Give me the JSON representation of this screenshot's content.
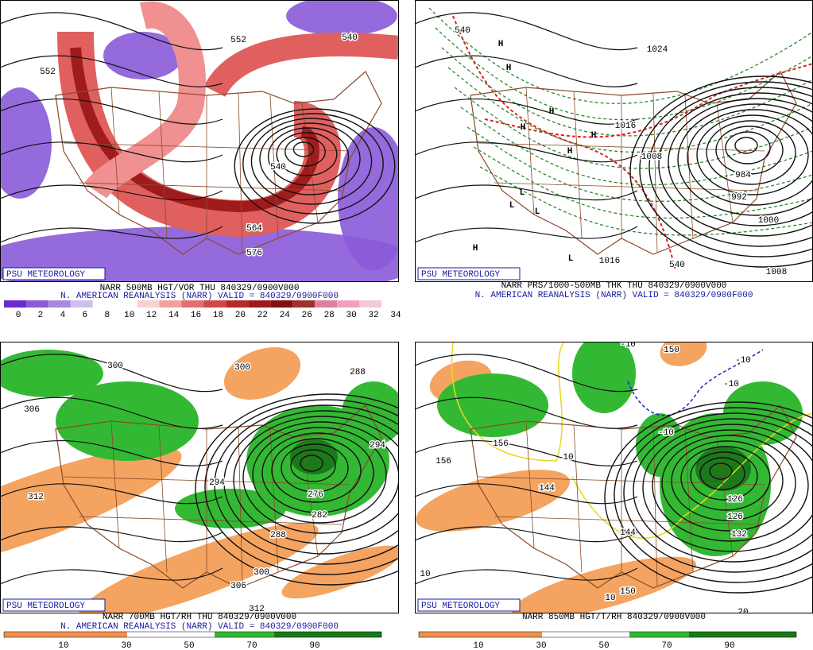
{
  "panels": [
    {
      "badge": "PSU METEOROLOGY",
      "caption": [
        "NARR 500MB HGT/VOR THU 840329/0900V000",
        "N. AMERICAN REANALYSIS (NARR) VALID = 840329/0900F000"
      ],
      "colorbar": [
        0,
        2,
        4,
        6,
        8,
        10,
        12,
        14,
        16,
        18,
        20,
        22,
        24,
        26,
        28,
        30,
        32,
        34
      ],
      "contour_labels": [
        552,
        540,
        552,
        540,
        564,
        576
      ]
    },
    {
      "badge": "PSU METEOROLOGY",
      "caption": [
        "NARR PRS/1000-500MB THK THU 840329/0900V000",
        "N. AMERICAN REANALYSIS (NARR) VALID = 840329/0900F000"
      ],
      "contour_labels": [
        1024,
        1016,
        1016,
        1000,
        1008,
        984,
        992,
        1008,
        540,
        540,
        "H",
        "H",
        "H",
        "H",
        "H",
        "H",
        "H",
        "L",
        "L",
        "L",
        "L"
      ]
    },
    {
      "badge": "PSU METEOROLOGY",
      "caption": [
        "NARR 700MB HGT/RH THU 840329/0900V000",
        "N. AMERICAN REANALYSIS (NARR) VALID = 840329/0900F000"
      ],
      "colorbar": [
        10,
        30,
        50,
        70,
        90
      ],
      "contour_labels": [
        300,
        300,
        288,
        294,
        294,
        276,
        282,
        288,
        300,
        306,
        312,
        312,
        306
      ]
    },
    {
      "badge": "PSU METEOROLOGY",
      "caption": [
        "NARR 850MB HGT/T/RH 840329/0900V000"
      ],
      "colorbar": [
        10,
        30,
        50,
        70,
        90
      ],
      "contour_labels": [
        150,
        156,
        156,
        144,
        144,
        150,
        126,
        126,
        132,
        -10,
        -10,
        -10,
        -10,
        10,
        10,
        10,
        20
      ]
    }
  ]
}
